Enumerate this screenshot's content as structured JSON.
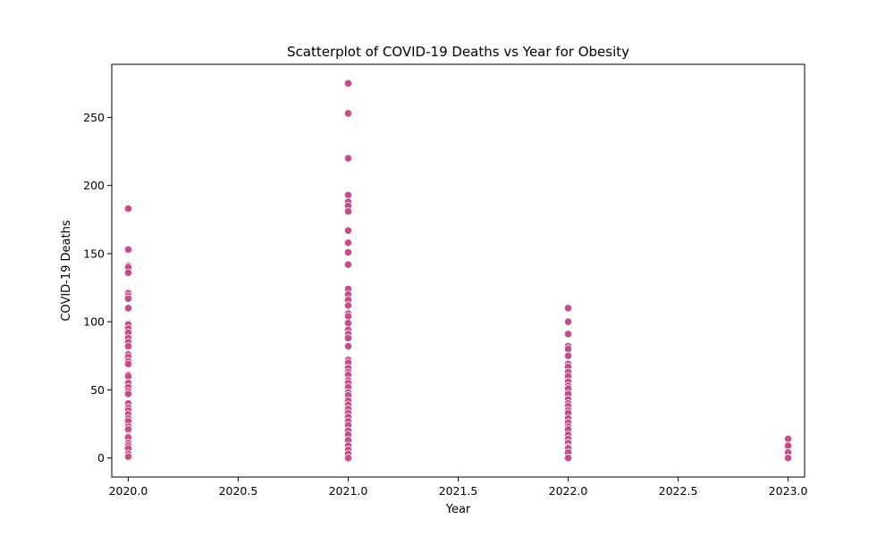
{
  "chart_data": {
    "type": "scatter",
    "title": "Scatterplot of COVID-19 Deaths vs Year for Obesity",
    "xlabel": "Year",
    "ylabel": "COVID-19 Deaths",
    "xlim": [
      2019.925,
      2023.075
    ],
    "ylim": [
      -14,
      289
    ],
    "x_ticks": [
      "2020.0",
      "2020.5",
      "2021.0",
      "2021.5",
      "2022.0",
      "2022.5",
      "2023.0"
    ],
    "x_tick_values": [
      2020.0,
      2020.5,
      2021.0,
      2021.5,
      2022.0,
      2022.5,
      2023.0
    ],
    "y_ticks": [
      "0",
      "50",
      "100",
      "150",
      "200",
      "250"
    ],
    "y_tick_values": [
      0,
      50,
      100,
      150,
      200,
      250
    ],
    "grid": false,
    "marker_color": "#c44e8a",
    "marker_edge_color": "#ffffff",
    "series": [
      {
        "points": [
          [
            2020,
            183
          ],
          [
            2020,
            153
          ],
          [
            2020,
            141
          ],
          [
            2020,
            140
          ],
          [
            2020,
            136
          ],
          [
            2020,
            121
          ],
          [
            2020,
            119
          ],
          [
            2020,
            117
          ],
          [
            2020,
            110
          ],
          [
            2020,
            98
          ],
          [
            2020,
            95
          ],
          [
            2020,
            92
          ],
          [
            2020,
            88
          ],
          [
            2020,
            85
          ],
          [
            2020,
            82
          ],
          [
            2020,
            76
          ],
          [
            2020,
            74
          ],
          [
            2020,
            71
          ],
          [
            2020,
            69
          ],
          [
            2020,
            61
          ],
          [
            2020,
            60
          ],
          [
            2020,
            55
          ],
          [
            2020,
            52
          ],
          [
            2020,
            49
          ],
          [
            2020,
            47
          ],
          [
            2020,
            40
          ],
          [
            2020,
            37
          ],
          [
            2020,
            35
          ],
          [
            2020,
            32
          ],
          [
            2020,
            29
          ],
          [
            2020,
            27
          ],
          [
            2020,
            23
          ],
          [
            2020,
            21
          ],
          [
            2020,
            16
          ],
          [
            2020,
            15
          ],
          [
            2020,
            11
          ],
          [
            2020,
            9
          ],
          [
            2020,
            7
          ],
          [
            2020,
            3
          ],
          [
            2020,
            1
          ],
          [
            2021,
            275
          ],
          [
            2021,
            253
          ],
          [
            2021,
            220
          ],
          [
            2021,
            193
          ],
          [
            2021,
            188
          ],
          [
            2021,
            185
          ],
          [
            2021,
            181
          ],
          [
            2021,
            167
          ],
          [
            2021,
            158
          ],
          [
            2021,
            151
          ],
          [
            2021,
            142
          ],
          [
            2021,
            124
          ],
          [
            2021,
            120
          ],
          [
            2021,
            116
          ],
          [
            2021,
            112
          ],
          [
            2021,
            106
          ],
          [
            2021,
            104
          ],
          [
            2021,
            99
          ],
          [
            2021,
            94
          ],
          [
            2021,
            91
          ],
          [
            2021,
            88
          ],
          [
            2021,
            82
          ],
          [
            2021,
            72
          ],
          [
            2021,
            70
          ],
          [
            2021,
            66
          ],
          [
            2021,
            63
          ],
          [
            2021,
            61
          ],
          [
            2021,
            57
          ],
          [
            2021,
            55
          ],
          [
            2021,
            52
          ],
          [
            2021,
            48
          ],
          [
            2021,
            46
          ],
          [
            2021,
            42
          ],
          [
            2021,
            39
          ],
          [
            2021,
            36
          ],
          [
            2021,
            33
          ],
          [
            2021,
            30
          ],
          [
            2021,
            27
          ],
          [
            2021,
            24
          ],
          [
            2021,
            20
          ],
          [
            2021,
            17
          ],
          [
            2021,
            13
          ],
          [
            2021,
            9
          ],
          [
            2021,
            6
          ],
          [
            2021,
            3
          ],
          [
            2021,
            0
          ],
          [
            2022,
            110
          ],
          [
            2022,
            100
          ],
          [
            2022,
            91
          ],
          [
            2022,
            82
          ],
          [
            2022,
            80
          ],
          [
            2022,
            75
          ],
          [
            2022,
            69
          ],
          [
            2022,
            67
          ],
          [
            2022,
            63
          ],
          [
            2022,
            60
          ],
          [
            2022,
            56
          ],
          [
            2022,
            53
          ],
          [
            2022,
            51
          ],
          [
            2022,
            47
          ],
          [
            2022,
            43
          ],
          [
            2022,
            40
          ],
          [
            2022,
            38
          ],
          [
            2022,
            35
          ],
          [
            2022,
            33
          ],
          [
            2022,
            29
          ],
          [
            2022,
            26
          ],
          [
            2022,
            23
          ],
          [
            2022,
            21
          ],
          [
            2022,
            17
          ],
          [
            2022,
            14
          ],
          [
            2022,
            11
          ],
          [
            2022,
            8
          ],
          [
            2022,
            7
          ],
          [
            2022,
            4
          ],
          [
            2022,
            0
          ],
          [
            2023,
            14
          ],
          [
            2023,
            9
          ],
          [
            2023,
            4
          ],
          [
            2023,
            0
          ]
        ]
      }
    ]
  }
}
